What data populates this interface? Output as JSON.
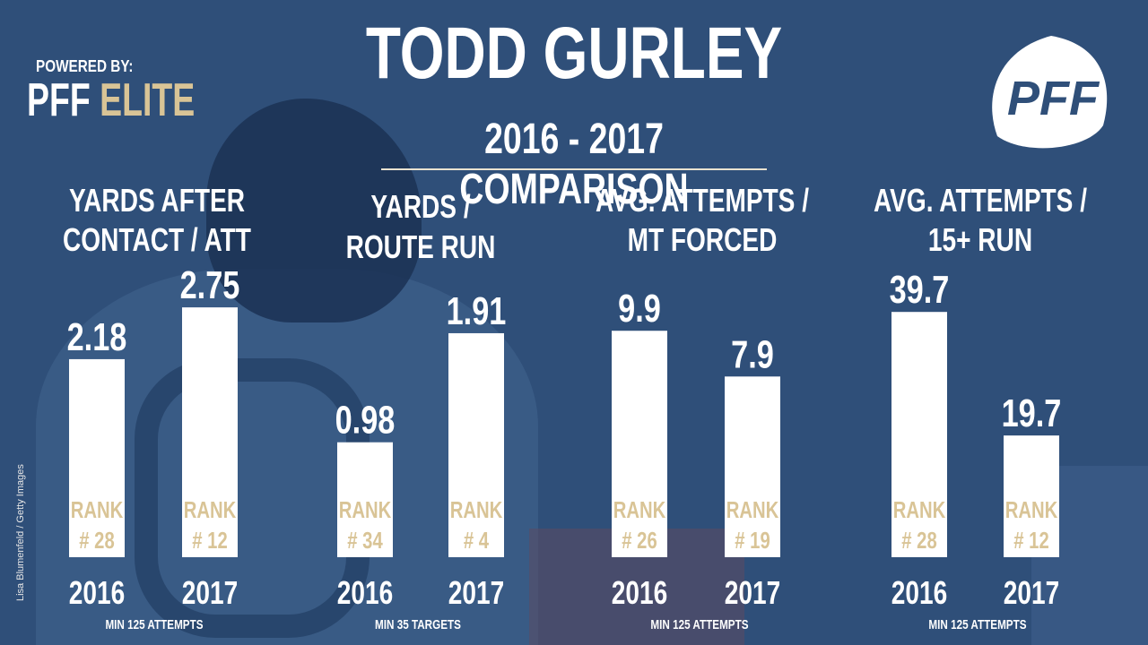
{
  "header": {
    "title": "TODD GURLEY",
    "subtitle": "2016 - 2017 COMPARISON",
    "powered_by": "POWERED BY:",
    "brand_pff": "PFF",
    "brand_elite": "ELITE",
    "logo_text": "PFF"
  },
  "credit": "Lisa Blumenfeld / Getty Images",
  "colors": {
    "background": "#2f4f79",
    "bar": "#ffffff",
    "rank_text": "#d9c496",
    "accent_gold": "#d9c496"
  },
  "chart_data": [
    {
      "type": "bar",
      "title": [
        "YARDS AFTER",
        "CONTACT / ATT"
      ],
      "categories": [
        "2016",
        "2017"
      ],
      "values": [
        2.18,
        2.75
      ],
      "value_labels": [
        "2.18",
        "2.75"
      ],
      "ranks": [
        "# 28",
        "# 12"
      ],
      "rank_label": "RANK",
      "note": "MIN 125 ATTEMPTS",
      "ylim": [
        0,
        3.55
      ]
    },
    {
      "type": "bar",
      "title": [
        "YARDS /",
        "ROUTE RUN"
      ],
      "categories": [
        "2016",
        "2017"
      ],
      "values": [
        0.98,
        1.91
      ],
      "value_labels": [
        "0.98",
        "1.91"
      ],
      "ranks": [
        "# 34",
        "# 4"
      ],
      "rank_label": "RANK",
      "note": "MIN 35 TARGETS",
      "ylim": [
        0,
        2.75
      ]
    },
    {
      "type": "bar",
      "title": [
        "AVG. ATTEMPTS /",
        "MT FORCED"
      ],
      "categories": [
        "2016",
        "2017"
      ],
      "values": [
        9.9,
        7.9
      ],
      "value_labels": [
        "9.9",
        "7.9"
      ],
      "ranks": [
        "# 26",
        "# 19"
      ],
      "rank_label": "RANK",
      "note": "MIN 125 ATTEMPTS",
      "ylim": [
        0,
        14.1
      ]
    },
    {
      "type": "bar",
      "title": [
        "AVG. ATTEMPTS /",
        "15+ RUN"
      ],
      "categories": [
        "2016",
        "2017"
      ],
      "values": [
        39.7,
        19.7
      ],
      "value_labels": [
        "39.7",
        "19.7"
      ],
      "ranks": [
        "# 28",
        "# 12"
      ],
      "rank_label": "RANK",
      "note": "MIN 125 ATTEMPTS",
      "ylim": [
        0,
        52.2
      ]
    }
  ]
}
